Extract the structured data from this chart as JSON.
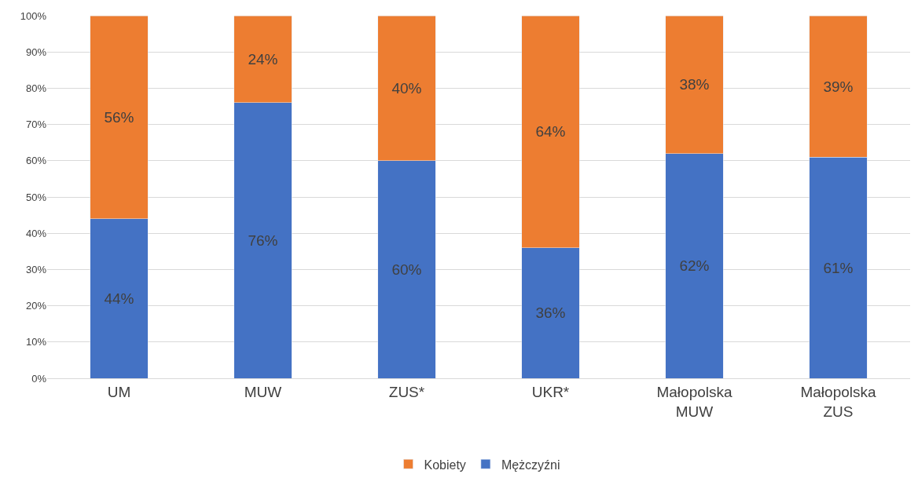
{
  "chart_data": {
    "type": "bar",
    "stacked": true,
    "categories": [
      "UM",
      "MUW",
      "ZUS*",
      "UKR*",
      "Małopolska\nMUW",
      "Małopolska\nZUS"
    ],
    "series": [
      {
        "name": "Mężczyźni",
        "color": "#4472c4",
        "values": [
          44,
          76,
          60,
          36,
          62,
          61
        ],
        "value_labels": [
          "44%",
          "76%",
          "60%",
          "36%",
          "62%",
          "61%"
        ]
      },
      {
        "name": "Kobiety",
        "color": "#ed7d31",
        "values": [
          56,
          24,
          40,
          64,
          38,
          39
        ],
        "value_labels": [
          "56%",
          "24%",
          "40%",
          "64%",
          "38%",
          "39%"
        ]
      }
    ],
    "ylim": [
      0,
      100
    ],
    "yticks": [
      {
        "value": 0,
        "label": "0%"
      },
      {
        "value": 10,
        "label": "10%"
      },
      {
        "value": 20,
        "label": "20%"
      },
      {
        "value": 30,
        "label": "30%"
      },
      {
        "value": 40,
        "label": "40%"
      },
      {
        "value": 50,
        "label": "50%"
      },
      {
        "value": 60,
        "label": "60%"
      },
      {
        "value": 70,
        "label": "70%"
      },
      {
        "value": 80,
        "label": "80%"
      },
      {
        "value": 90,
        "label": "90%"
      },
      {
        "value": 100,
        "label": "100%"
      }
    ],
    "grid": "y",
    "legend": "bottom"
  }
}
